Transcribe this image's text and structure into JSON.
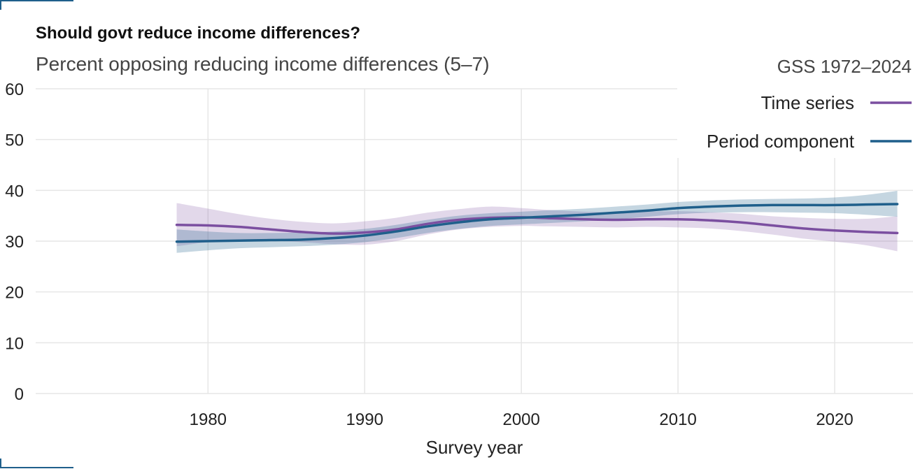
{
  "chart_data": {
    "type": "line",
    "title": "Should govt reduce income differences?",
    "subtitle": "Percent opposing reducing income differences (5–7)",
    "xlabel": "Survey year",
    "ylabel": "",
    "xlim": [
      1969,
      2025
    ],
    "ylim": [
      0,
      60
    ],
    "x_ticks": [
      1980,
      1990,
      2000,
      2010,
      2020
    ],
    "y_ticks": [
      0,
      10,
      20,
      30,
      40,
      50,
      60
    ],
    "grid": true,
    "legend_title": "GSS 1972–2024",
    "legend_position": "top-right",
    "series": [
      {
        "name": "Time series",
        "color": "#7b4fa0",
        "x": [
          1978,
          1980,
          1982,
          1984,
          1986,
          1988,
          1990,
          1992,
          1994,
          1996,
          1998,
          2000,
          2002,
          2004,
          2006,
          2008,
          2010,
          2012,
          2014,
          2016,
          2018,
          2020,
          2022,
          2024
        ],
        "y": [
          33.2,
          33.1,
          32.8,
          32.3,
          31.8,
          31.5,
          31.7,
          32.3,
          33.4,
          34.2,
          34.6,
          34.7,
          34.5,
          34.3,
          34.2,
          34.3,
          34.3,
          34.1,
          33.7,
          33.1,
          32.5,
          32.1,
          31.8,
          31.6
        ],
        "lower": [
          29.0,
          29.8,
          30.2,
          30.1,
          29.8,
          29.4,
          29.3,
          30.0,
          31.3,
          32.3,
          32.8,
          33.0,
          32.9,
          32.8,
          32.7,
          32.8,
          32.7,
          32.5,
          32.0,
          31.3,
          30.5,
          29.9,
          29.2,
          28.0
        ],
        "upper": [
          37.5,
          36.4,
          35.3,
          34.4,
          33.8,
          33.5,
          33.9,
          34.6,
          35.6,
          36.3,
          36.8,
          36.5,
          36.1,
          35.8,
          35.7,
          35.8,
          35.9,
          35.7,
          35.4,
          34.9,
          34.6,
          34.4,
          34.4,
          34.9
        ]
      },
      {
        "name": "Period component",
        "color": "#1f5f8b",
        "x": [
          1978,
          1980,
          1982,
          1984,
          1986,
          1988,
          1990,
          1992,
          1994,
          1996,
          1998,
          2000,
          2002,
          2004,
          2006,
          2008,
          2010,
          2012,
          2014,
          2016,
          2018,
          2020,
          2022,
          2024
        ],
        "y": [
          29.9,
          30.0,
          30.1,
          30.2,
          30.3,
          30.6,
          31.1,
          31.9,
          32.9,
          33.7,
          34.3,
          34.6,
          34.9,
          35.2,
          35.6,
          36.0,
          36.5,
          36.8,
          37.0,
          37.1,
          37.1,
          37.1,
          37.2,
          37.3
        ],
        "lower": [
          27.7,
          28.2,
          28.6,
          28.8,
          29.0,
          29.3,
          29.8,
          30.6,
          31.6,
          32.4,
          33.0,
          33.3,
          33.6,
          33.9,
          34.3,
          34.8,
          35.3,
          35.6,
          35.7,
          35.7,
          35.6,
          35.5,
          35.2,
          34.8
        ],
        "upper": [
          32.3,
          31.9,
          31.6,
          31.6,
          31.7,
          31.9,
          32.4,
          33.2,
          34.2,
          35.0,
          35.5,
          35.8,
          36.1,
          36.4,
          36.8,
          37.2,
          37.7,
          38.0,
          38.2,
          38.3,
          38.4,
          38.6,
          39.1,
          39.9
        ]
      }
    ]
  }
}
